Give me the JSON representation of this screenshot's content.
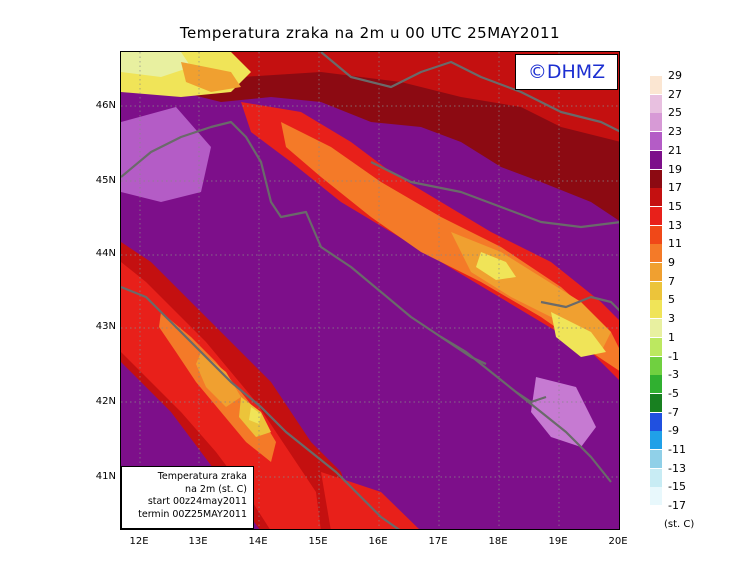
{
  "title": "Temperatura zraka na 2m u 00 UTC 25MAY2011",
  "copyright": "©DHMZ",
  "info_box": {
    "line1": "Temperatura zraka",
    "line2": "na 2m (st. C)",
    "line3": "start 00z24may2011",
    "line4": "termin 00Z25MAY2011"
  },
  "lat_ticks": [
    "46N",
    "45N",
    "44N",
    "43N",
    "42N",
    "41N"
  ],
  "lon_ticks": [
    "12E",
    "13E",
    "14E",
    "15E",
    "16E",
    "17E",
    "18E",
    "19E",
    "20E"
  ],
  "legend": {
    "unit": "(st. C)",
    "labels": [
      "29",
      "27",
      "25",
      "23",
      "21",
      "19",
      "17",
      "15",
      "13",
      "11",
      "9",
      "7",
      "5",
      "3",
      "1",
      "-1",
      "-3",
      "-5",
      "-7",
      "-9",
      "-11",
      "-13",
      "-15",
      "-17"
    ],
    "colors": [
      "#fbe6d2",
      "#e8c0e0",
      "#d79ad6",
      "#b45cc6",
      "#7d0f8a",
      "#8c0a12",
      "#c41010",
      "#e8201a",
      "#f04818",
      "#f47a28",
      "#f0a030",
      "#ecc43a",
      "#f0e458",
      "#e8f0a0",
      "#bce860",
      "#70d040",
      "#30b030",
      "#188020",
      "#2050e0",
      "#20a0e8",
      "#90d0e8",
      "#c8ecf4",
      "#e8f8fc"
    ]
  },
  "colors": {
    "sea_purple": "#7d0f8a",
    "coast_line": "#6a6a6a",
    "logo_text": "#1c2fd1"
  }
}
